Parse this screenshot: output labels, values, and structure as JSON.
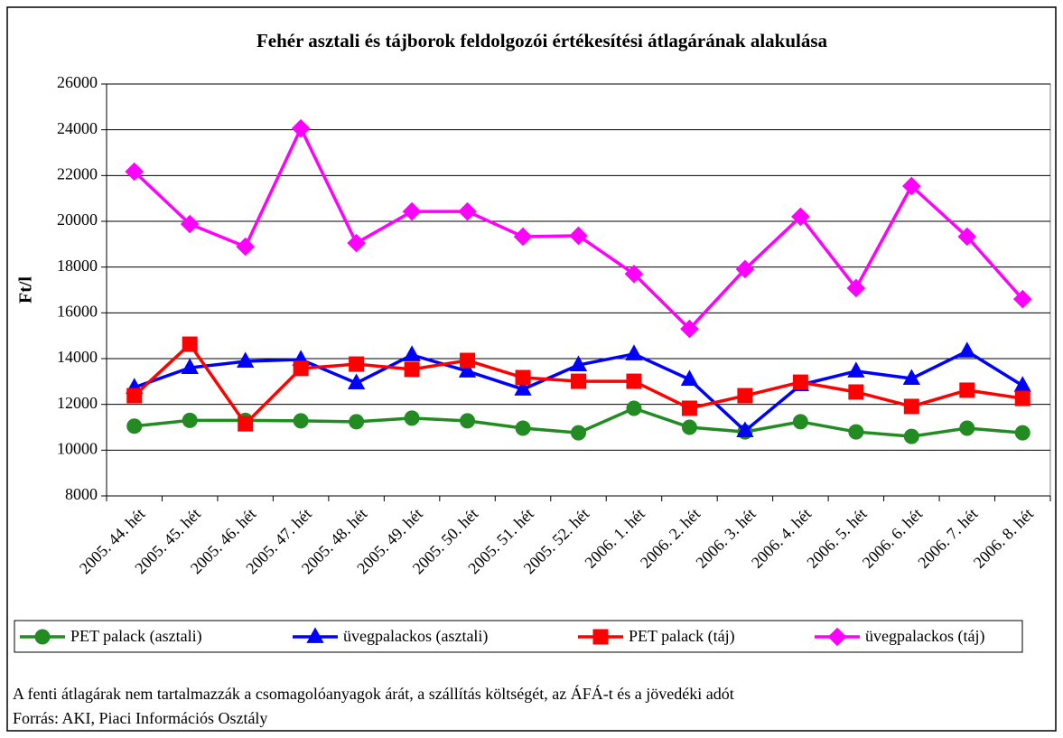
{
  "chart_data": {
    "type": "line",
    "title": "Fehér asztali és tájborok feldolgozói értékesítési átlagárának alakulása",
    "y_label": "Ft/l",
    "categories": [
      "2005. 44. hét",
      "2005. 45. hét",
      "2005. 46. hét",
      "2005. 47. hét",
      "2005. 48. hét",
      "2005. 49. hét",
      "2005. 50. hét",
      "2005. 51. hét",
      "2005. 52. hét",
      "2006. 1. hét",
      "2006. 2. hét",
      "2006. 3. hét",
      "2006. 4. hét",
      "2006. 5. hét",
      "2006. 6. hét",
      "2006. 7. hét",
      "2006. 8. hét"
    ],
    "series": [
      {
        "name": "PET palack (asztali)",
        "color": "#228b22",
        "marker": "circle",
        "values": [
          11050,
          11300,
          11300,
          11280,
          11240,
          11400,
          11280,
          10960,
          10760,
          11830,
          11000,
          10800,
          11240,
          10800,
          10600,
          10960,
          10760
        ]
      },
      {
        "name": "üvegpalackos (asztali)",
        "color": "#0000ff",
        "marker": "triangle",
        "values": [
          12740,
          13600,
          13880,
          13960,
          12930,
          14160,
          13450,
          12660,
          13720,
          14200,
          13090,
          10840,
          12850,
          13450,
          13130,
          14320,
          12820
        ]
      },
      {
        "name": "PET palack (táj)",
        "color": "#ff0000",
        "marker": "square",
        "values": [
          12380,
          14630,
          11150,
          13570,
          13760,
          13530,
          13920,
          13170,
          13010,
          13010,
          11830,
          12380,
          12970,
          12540,
          11910,
          12620,
          12260
        ]
      },
      {
        "name": "üvegpalackos (táj)",
        "color": "#ff00ff",
        "marker": "diamond",
        "values": [
          22170,
          19880,
          18890,
          24060,
          19050,
          20430,
          20430,
          19330,
          19370,
          17700,
          15300,
          17910,
          20200,
          17080,
          21540,
          19330,
          16600
        ]
      }
    ],
    "ylim": [
      8000,
      26000
    ],
    "yticks": [
      8000,
      10000,
      12000,
      14000,
      16000,
      18000,
      20000,
      22000,
      24000,
      26000
    ],
    "grid": true,
    "legend": "bottom",
    "notes": [
      "A fenti átlagárak nem tartalmazzák a csomagolóanyagok árát, a szállítás költségét, az ÁFÁ-t és a jövedéki adót",
      "Forrás: AKI, Piaci Információs Osztály"
    ]
  }
}
